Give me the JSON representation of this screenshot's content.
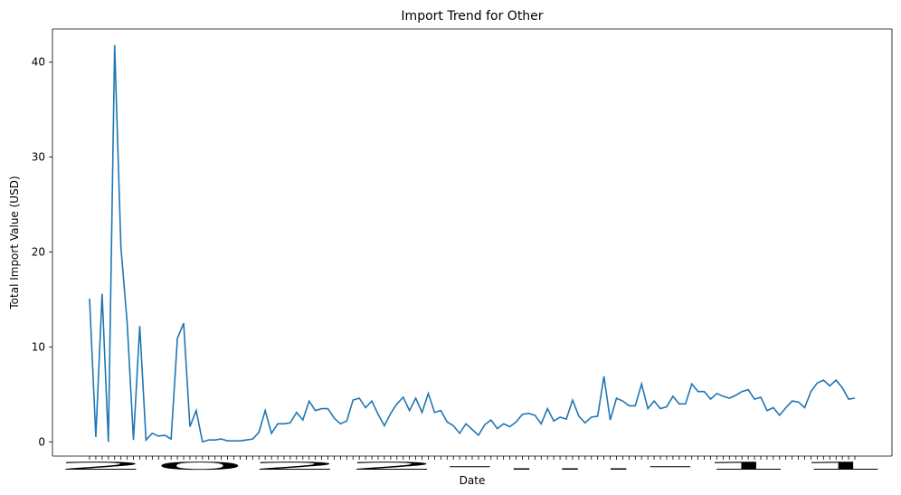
{
  "chart_data": {
    "type": "line",
    "title": "Import Trend for Other",
    "xlabel": "Date",
    "ylabel": "Total Import Value (USD)",
    "ylim": [
      -1.5,
      43.5
    ],
    "yticks": [
      0,
      10,
      20,
      30,
      40
    ],
    "grid": false,
    "legend": "none",
    "line_color": "#1f77b4",
    "x_tick_labels_overlapping": "2022-...-11",
    "series": [
      {
        "values": [
          15.1,
          0.5,
          15.6,
          0.0,
          41.8,
          20.5,
          12.5,
          0.2,
          12.2,
          0.2,
          0.9,
          0.6,
          0.7,
          0.3,
          10.9,
          12.5,
          1.6,
          3.3,
          0.0,
          0.2,
          0.2,
          0.3,
          0.1,
          0.1,
          0.1,
          0.2,
          0.3,
          1.0,
          3.3,
          0.9,
          1.9,
          1.9,
          2.0,
          3.1,
          2.3,
          4.3,
          3.3,
          3.5,
          3.5,
          2.5,
          1.9,
          2.2,
          4.4,
          4.6,
          3.6,
          4.3,
          2.9,
          1.7,
          3.0,
          4.0,
          4.7,
          3.3,
          4.6,
          3.1,
          5.1,
          3.1,
          3.3,
          2.1,
          1.7,
          0.9,
          1.9,
          1.3,
          0.7,
          1.8,
          2.3,
          1.4,
          1.9,
          1.6,
          2.1,
          2.9,
          3.0,
          2.8,
          1.9,
          3.5,
          2.2,
          2.6,
          2.4,
          4.4,
          2.7,
          2.0,
          2.6,
          2.7,
          6.9,
          2.3,
          4.6,
          4.3,
          3.8,
          3.8,
          6.1,
          3.5,
          4.3,
          3.5,
          3.7,
          4.8,
          4.0,
          4.0,
          6.1,
          5.3,
          5.3,
          4.5,
          5.1,
          4.8,
          4.6,
          4.9,
          5.3,
          5.5,
          4.5,
          4.7,
          3.3,
          3.6,
          2.8,
          3.6,
          4.3,
          4.2,
          3.6,
          5.3,
          6.2,
          6.5,
          5.9,
          6.5,
          5.7,
          4.5,
          4.6
        ]
      }
    ]
  }
}
